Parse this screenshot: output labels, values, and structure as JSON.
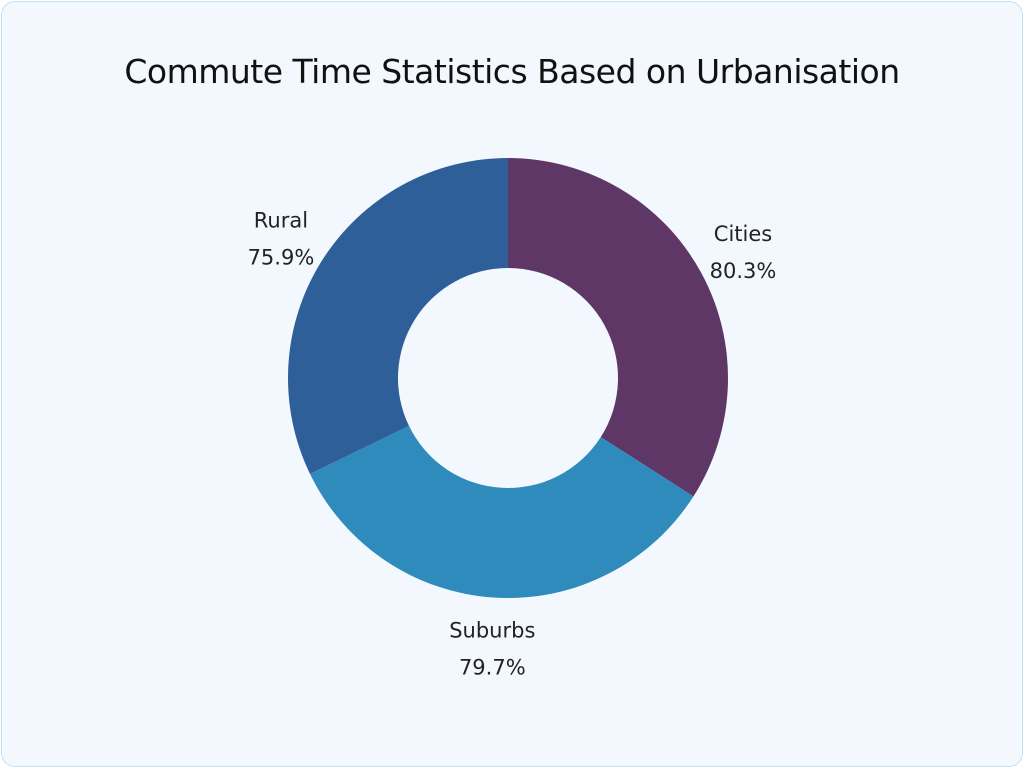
{
  "chart_data": {
    "type": "pie",
    "variant": "donut",
    "title": "Commute Time Statistics Based on Urbanisation",
    "categories": [
      "Cities",
      "Suburbs",
      "Rural"
    ],
    "values": [
      80.3,
      79.7,
      75.9
    ],
    "value_labels": [
      "80.3%",
      "79.7%",
      "75.9%"
    ],
    "colors": [
      "#5e3766",
      "#2e8bbb",
      "#2e5f99"
    ],
    "start_angle": "top",
    "direction": "clockwise",
    "legend": "none"
  }
}
